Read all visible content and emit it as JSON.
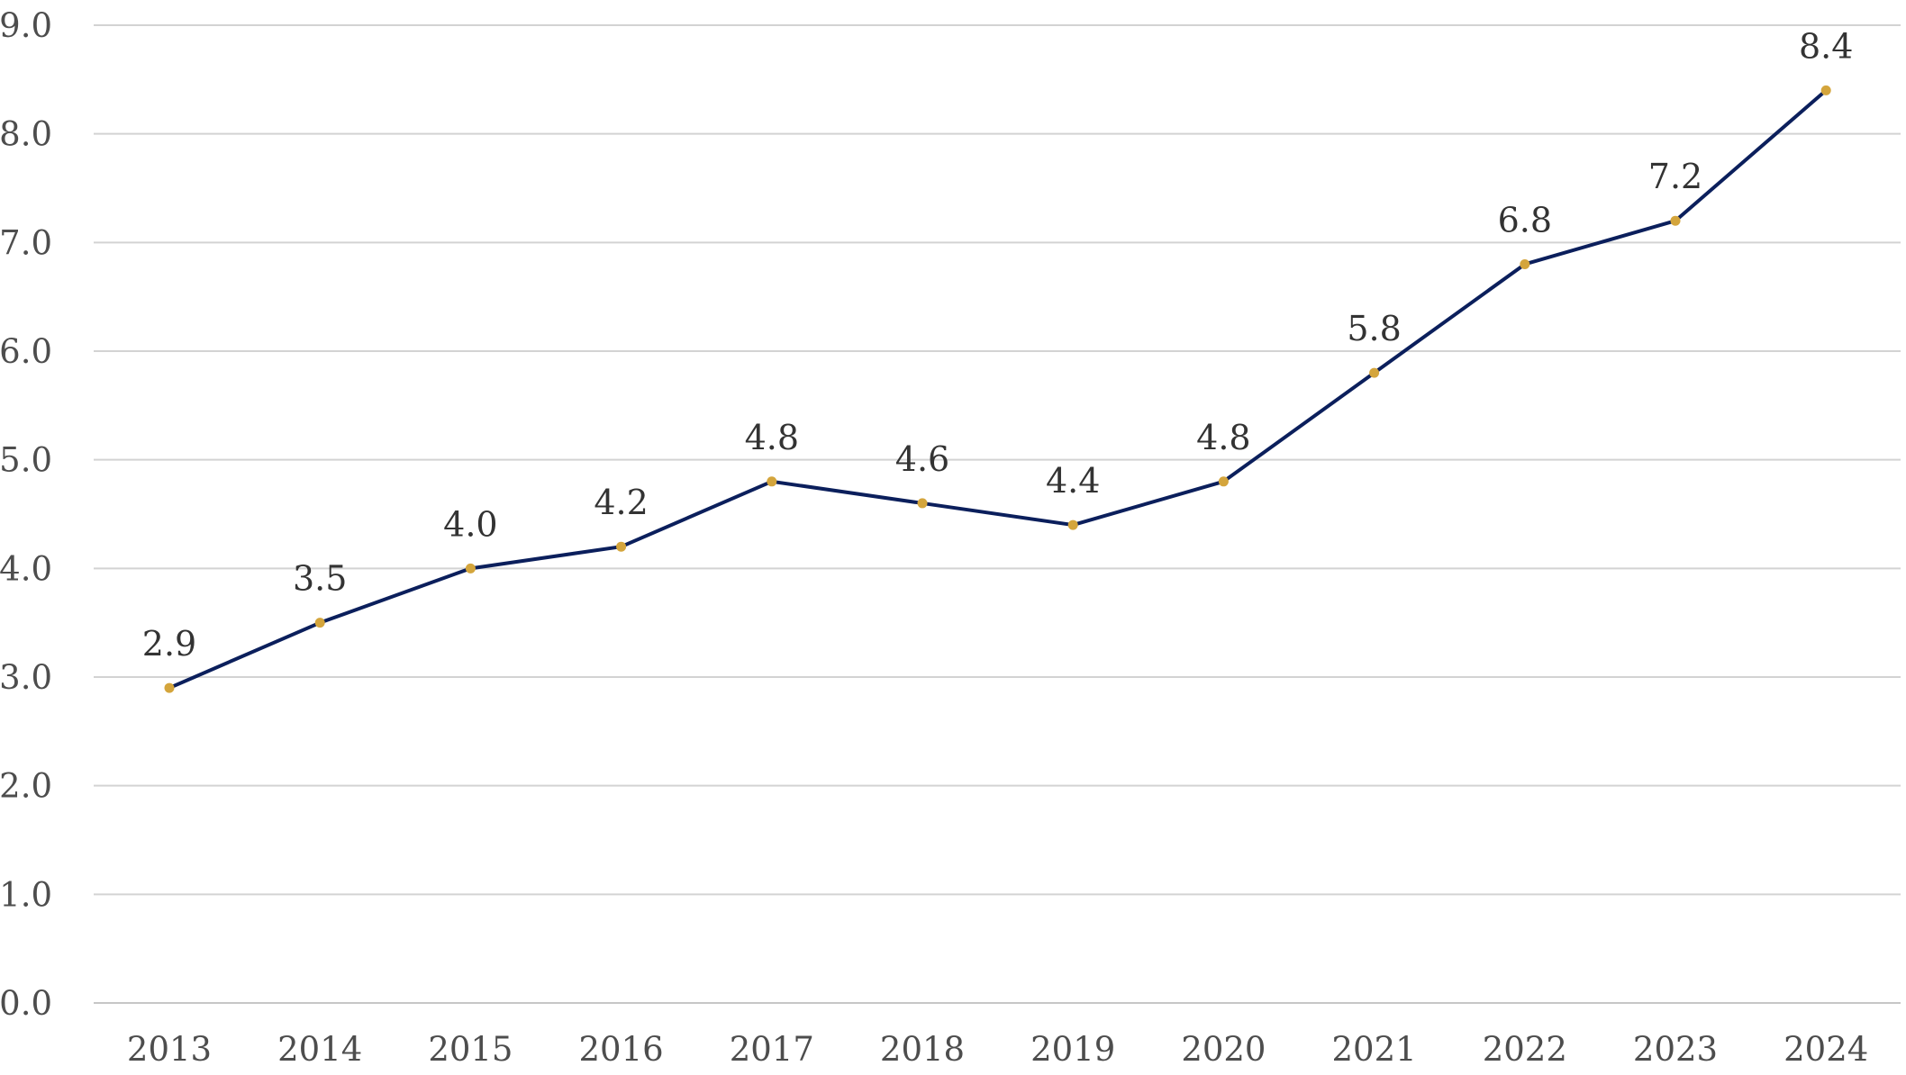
{
  "chart_data": {
    "type": "line",
    "title": "",
    "xlabel": "",
    "ylabel": "",
    "categories": [
      "2013",
      "2014",
      "2015",
      "2016",
      "2017",
      "2018",
      "2019",
      "2020",
      "2021",
      "2022",
      "2023",
      "2024"
    ],
    "series": [
      {
        "values": [
          2.9,
          3.5,
          4.0,
          4.2,
          4.8,
          4.6,
          4.4,
          4.8,
          5.8,
          6.8,
          7.2,
          8.4
        ],
        "data_labels": [
          "2.9",
          "3.5",
          "4.0",
          "4.2",
          "4.8",
          "4.6",
          "4.4",
          "4.8",
          "5.8",
          "6.8",
          "7.2",
          "8.4"
        ],
        "line_color": "#0b1f5c",
        "marker_color": "#d4a53c"
      }
    ],
    "ylim": [
      0,
      9
    ],
    "y_ticks": [
      0,
      1,
      2,
      3,
      4,
      5,
      6,
      7,
      8,
      9
    ],
    "y_tick_labels": [
      "0.0",
      "1.0",
      "2.0",
      "3.0",
      "4.0",
      "5.0",
      "6.0",
      "7.0",
      "8.0",
      "9.0"
    ],
    "grid": true,
    "legend": "none",
    "colors": {
      "background": "#ffffff",
      "gridline": "#d3d3d3",
      "tick_text": "#4d4d4d",
      "label_text": "#333333"
    }
  }
}
